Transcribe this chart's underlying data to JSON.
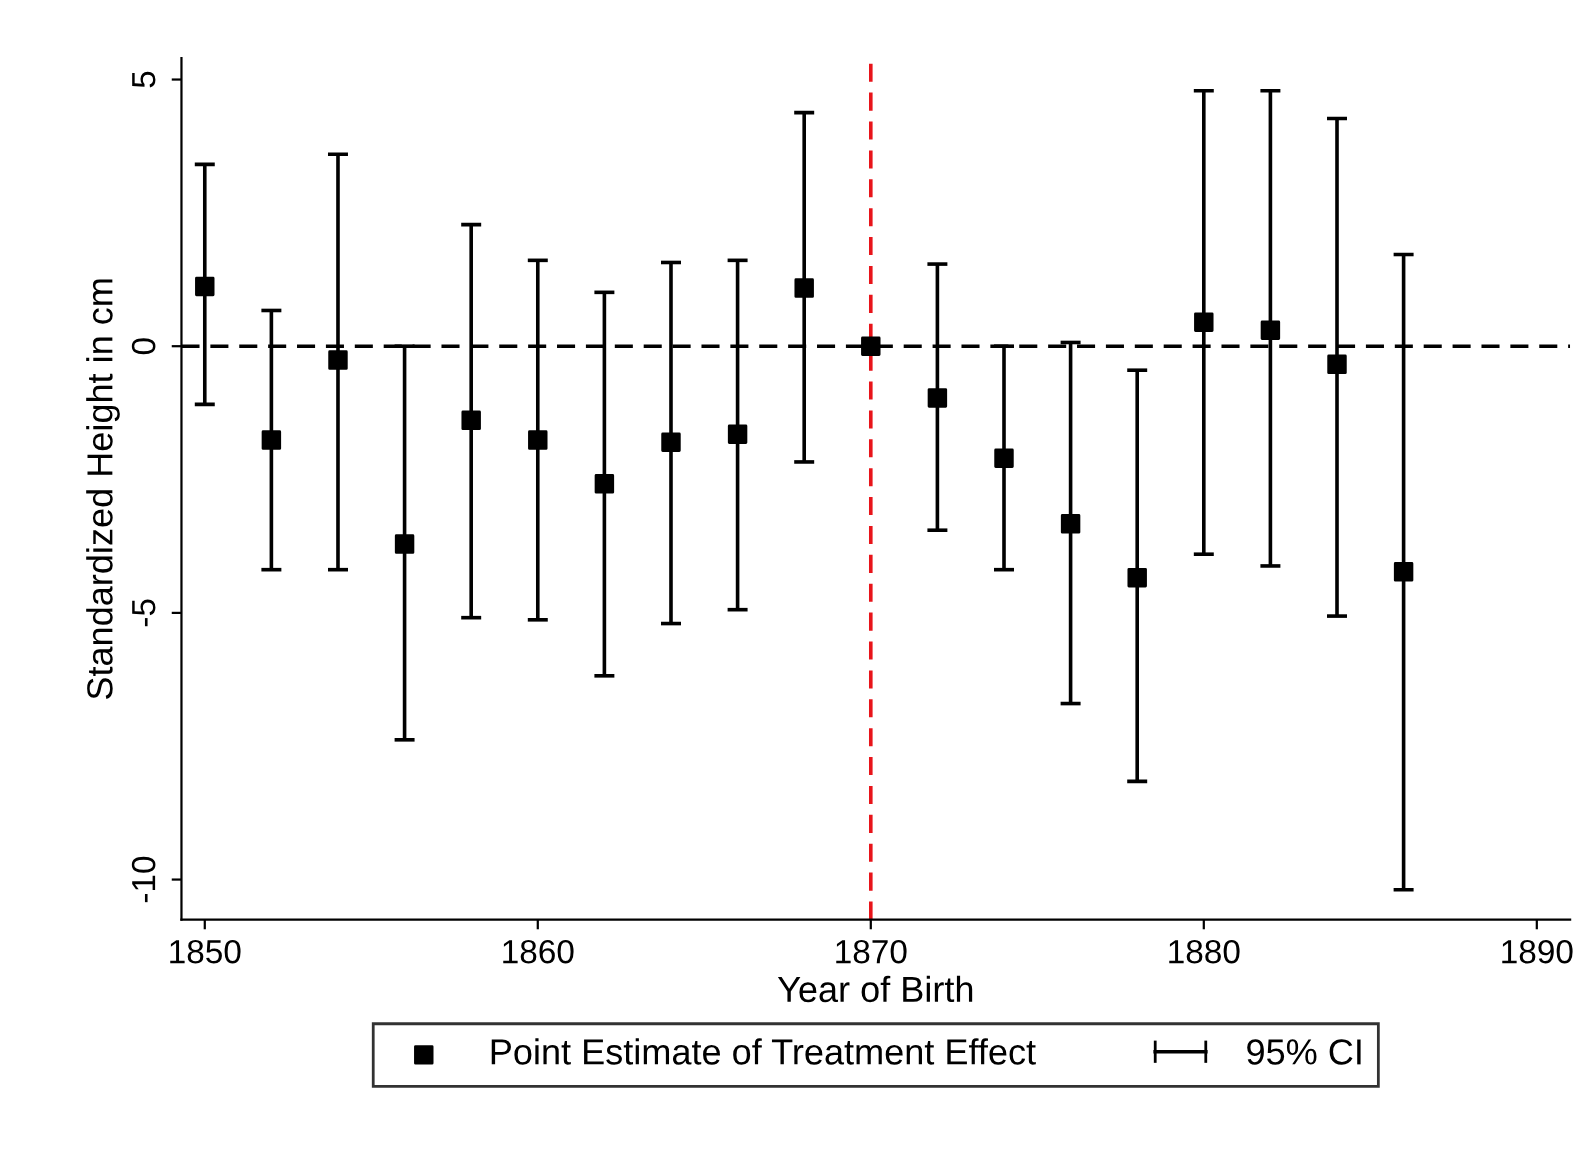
{
  "chart_data": {
    "type": "scatter",
    "xlabel": "Year of Birth",
    "ylabel": "Standardized Height in cm",
    "x": [
      1850,
      1852,
      1854,
      1856,
      1858,
      1860,
      1862,
      1864,
      1866,
      1868,
      1870,
      1872,
      1874,
      1876,
      1878,
      1880,
      1882,
      1884,
      1886
    ],
    "series": [
      {
        "name": "Point Estimate of Treatment Effect",
        "color": "#000000",
        "values": [
          1.12,
          -1.76,
          -0.26,
          -3.71,
          -1.39,
          -1.76,
          -2.58,
          -1.8,
          -1.65,
          1.09,
          0,
          -0.97,
          -2.1,
          -3.33,
          -4.34,
          0.45,
          0.3,
          -0.34,
          -4.23
        ],
        "errors": [
          [
            -1.09,
            3.41
          ],
          [
            -4.19,
            0.67
          ],
          [
            -4.19,
            3.6
          ],
          [
            -7.38,
            0
          ],
          [
            -5.09,
            2.28
          ],
          [
            -5.13,
            1.61
          ],
          [
            -6.18,
            1.01
          ],
          [
            -5.2,
            1.57
          ],
          [
            -4.94,
            1.61
          ],
          [
            -2.17,
            4.38
          ],
          null,
          [
            -3.45,
            1.54
          ],
          [
            -4.19,
            0
          ],
          [
            -6.7,
            0.07
          ],
          [
            -8.16,
            -0.45
          ],
          [
            -3.9,
            4.79
          ],
          [
            -4.12,
            4.79
          ],
          [
            -5.06,
            4.27
          ],
          [
            -10.19,
            1.72
          ]
        ]
      }
    ],
    "annotations": [
      "95% CI"
    ],
    "marker": "square",
    "xlim": [
      1849.3,
      1891
    ],
    "xticks": [
      1850,
      1860,
      1870,
      1880,
      1890
    ],
    "ylim": [
      -10.75,
      5.4
    ],
    "yticks": [
      5,
      0,
      {
        "value": -5,
        "label": "-5"
      },
      {
        "value": -10,
        "label": "-10"
      }
    ],
    "ref_lines": [
      {
        "axis": "y",
        "value": 0,
        "color": "#000000",
        "line_style": "dashed"
      },
      {
        "axis": "x",
        "value": 1870,
        "color": "#e8141a",
        "line_style": "dashed"
      }
    ],
    "grid": false,
    "legend": "bottom"
  }
}
